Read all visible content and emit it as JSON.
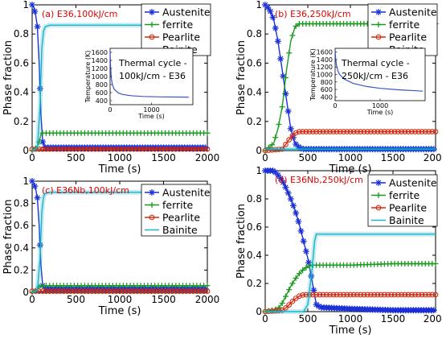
{
  "legend_labels": [
    "Austenite",
    "ferrite",
    "Pearlite",
    "Bainite"
  ],
  "x_axis": {
    "label": "Time (s)",
    "ticks": [
      0,
      500,
      1000,
      1500,
      2000
    ]
  },
  "y_axis": {
    "label": "Phase fraction",
    "ticks": [
      0,
      0.2,
      0.4,
      0.6,
      0.8,
      1
    ]
  },
  "colors": {
    "Austenite": "#1a2fd6",
    "ferrite": "#1b9a20",
    "Pearlite": "#d42a10",
    "Bainite": "#1bb3c8",
    "tag": "#e00000",
    "inset_curve": "#3a55c8"
  },
  "chart_data": [
    {
      "type": "line",
      "tag": "(a) E36,100kJ/cm",
      "xlim": [
        0,
        2000
      ],
      "ylim": [
        0,
        1
      ],
      "series": [
        {
          "name": "Austenite",
          "x": [
            0,
            20,
            40,
            60,
            80,
            100,
            120,
            150,
            200,
            300,
            500,
            1000,
            1500,
            1900
          ],
          "y": [
            1.0,
            0.98,
            0.93,
            0.85,
            0.6,
            0.25,
            0.06,
            0.02,
            0.02,
            0.02,
            0.02,
            0.02,
            0.02,
            0.02
          ]
        },
        {
          "name": "ferrite",
          "x": [
            0,
            50,
            80,
            100,
            120,
            150,
            200,
            500,
            1000,
            1500,
            2000
          ],
          "y": [
            0,
            0.02,
            0.06,
            0.11,
            0.12,
            0.12,
            0.12,
            0.12,
            0.12,
            0.12,
            0.12
          ]
        },
        {
          "name": "Pearlite",
          "x": [
            0,
            500,
            1000,
            1500,
            2000
          ],
          "y": [
            0.01,
            0.01,
            0.01,
            0.01,
            0.01
          ]
        },
        {
          "name": "Bainite",
          "x": [
            0,
            60,
            90,
            110,
            130,
            150,
            200,
            300,
            500,
            1000,
            1500,
            2000
          ],
          "y": [
            0,
            0.02,
            0.3,
            0.7,
            0.82,
            0.85,
            0.86,
            0.86,
            0.86,
            0.86,
            0.86,
            0.86
          ]
        }
      ],
      "inset": {
        "title": [
          "Thermal cycle -",
          "100kJ/cm - E36"
        ],
        "xlabel": "Time (s)",
        "ylabel": "Temperature (K)",
        "xticks": [
          0,
          1000
        ],
        "yticks": [
          400,
          600,
          800,
          1000,
          1200,
          1400,
          1600
        ],
        "xlim": [
          0,
          2000
        ],
        "ylim": [
          300,
          1700
        ],
        "x": [
          0,
          10,
          30,
          60,
          100,
          200,
          300,
          500,
          800,
          1200,
          1600,
          1900
        ],
        "y": [
          1650,
          1300,
          950,
          780,
          680,
          590,
          555,
          525,
          505,
          495,
          490,
          488
        ]
      }
    },
    {
      "type": "line",
      "tag": "(b) E36,250kJ/cm",
      "xlim": [
        0,
        2000
      ],
      "ylim": [
        0,
        1
      ],
      "series": [
        {
          "name": "Austenite",
          "x": [
            0,
            50,
            100,
            150,
            200,
            250,
            300,
            350,
            400,
            450,
            500,
            1000,
            1500,
            2000
          ],
          "y": [
            1.0,
            0.97,
            0.9,
            0.75,
            0.55,
            0.35,
            0.15,
            0.05,
            0.02,
            0.01,
            0.01,
            0.01,
            0.01,
            0.01
          ]
        },
        {
          "name": "ferrite",
          "x": [
            0,
            100,
            150,
            200,
            250,
            300,
            350,
            400,
            450,
            500,
            1000,
            1500,
            2000
          ],
          "y": [
            0,
            0.05,
            0.15,
            0.3,
            0.55,
            0.75,
            0.85,
            0.87,
            0.87,
            0.87,
            0.87,
            0.87,
            0.87
          ]
        },
        {
          "name": "Pearlite",
          "x": [
            0,
            200,
            250,
            300,
            350,
            400,
            500,
            1000,
            1500,
            2000
          ],
          "y": [
            0,
            0.01,
            0.05,
            0.09,
            0.12,
            0.13,
            0.13,
            0.13,
            0.13,
            0.13
          ]
        },
        {
          "name": "Bainite",
          "x": [
            0,
            500,
            1000,
            1500,
            2000
          ],
          "y": [
            0.01,
            0.01,
            0.01,
            0.01,
            0.01
          ]
        }
      ],
      "inset": {
        "title": [
          "Thermal cycle -",
          "250kJ/cm - E36"
        ],
        "xlabel": "Time (s)",
        "ylabel": "Temperature (K)",
        "xticks": [
          0,
          1000
        ],
        "yticks": [
          400,
          600,
          800,
          1000,
          1200,
          1400,
          1600
        ],
        "xlim": [
          0,
          2000
        ],
        "ylim": [
          300,
          1700
        ],
        "x": [
          0,
          10,
          30,
          60,
          100,
          200,
          400,
          700,
          1000,
          1400,
          1800,
          1950
        ],
        "y": [
          1640,
          1450,
          1250,
          1100,
          1000,
          880,
          760,
          680,
          630,
          590,
          565,
          555
        ]
      }
    },
    {
      "type": "line",
      "tag": "(c) E36Nb,100kJ/cm",
      "xlim": [
        0,
        2000
      ],
      "ylim": [
        0,
        1
      ],
      "series": [
        {
          "name": "Austenite",
          "x": [
            0,
            20,
            40,
            60,
            80,
            100,
            120,
            150,
            200,
            300,
            500,
            1000,
            1500,
            1900
          ],
          "y": [
            1.0,
            0.98,
            0.93,
            0.85,
            0.6,
            0.25,
            0.06,
            0.03,
            0.03,
            0.03,
            0.03,
            0.03,
            0.03,
            0.03
          ]
        },
        {
          "name": "ferrite",
          "x": [
            0,
            50,
            80,
            100,
            120,
            150,
            200,
            500,
            1000,
            1500,
            2000
          ],
          "y": [
            0,
            0.02,
            0.05,
            0.06,
            0.06,
            0.06,
            0.06,
            0.06,
            0.06,
            0.06,
            0.06
          ]
        },
        {
          "name": "Pearlite",
          "x": [
            0,
            500,
            1000,
            1500,
            2000
          ],
          "y": [
            0.01,
            0.01,
            0.01,
            0.01,
            0.01
          ]
        },
        {
          "name": "Bainite",
          "x": [
            0,
            60,
            90,
            110,
            130,
            150,
            200,
            300,
            500,
            1000,
            1500,
            2000
          ],
          "y": [
            0,
            0.02,
            0.3,
            0.72,
            0.86,
            0.89,
            0.9,
            0.9,
            0.9,
            0.9,
            0.9,
            0.9
          ]
        }
      ]
    },
    {
      "type": "line",
      "tag": "(d) E36Nb,250kJ/cm",
      "xlim": [
        0,
        2000
      ],
      "ylim": [
        0,
        1
      ],
      "series": [
        {
          "name": "Austenite",
          "x": [
            0,
            100,
            150,
            200,
            250,
            300,
            350,
            400,
            450,
            500,
            550,
            600,
            650,
            1000,
            1500,
            2000
          ],
          "y": [
            1.0,
            1.0,
            0.97,
            0.93,
            0.87,
            0.8,
            0.72,
            0.62,
            0.5,
            0.38,
            0.22,
            0.05,
            0.03,
            0.02,
            0.01,
            0.01
          ]
        },
        {
          "name": "ferrite",
          "x": [
            0,
            150,
            200,
            250,
            300,
            350,
            400,
            450,
            500,
            550,
            600,
            1000,
            1500,
            2000
          ],
          "y": [
            0,
            0.02,
            0.06,
            0.12,
            0.18,
            0.23,
            0.27,
            0.3,
            0.32,
            0.33,
            0.33,
            0.33,
            0.34,
            0.34
          ]
        },
        {
          "name": "Pearlite",
          "x": [
            0,
            200,
            250,
            300,
            350,
            400,
            450,
            500,
            600,
            1000,
            1500,
            2000
          ],
          "y": [
            0,
            0.01,
            0.03,
            0.06,
            0.09,
            0.11,
            0.12,
            0.12,
            0.12,
            0.12,
            0.12,
            0.12
          ]
        },
        {
          "name": "Bainite",
          "x": [
            0,
            450,
            500,
            550,
            580,
            600,
            650,
            1000,
            1500,
            2000
          ],
          "y": [
            0,
            0.0,
            0.05,
            0.3,
            0.5,
            0.55,
            0.55,
            0.55,
            0.55,
            0.55
          ]
        }
      ]
    }
  ]
}
